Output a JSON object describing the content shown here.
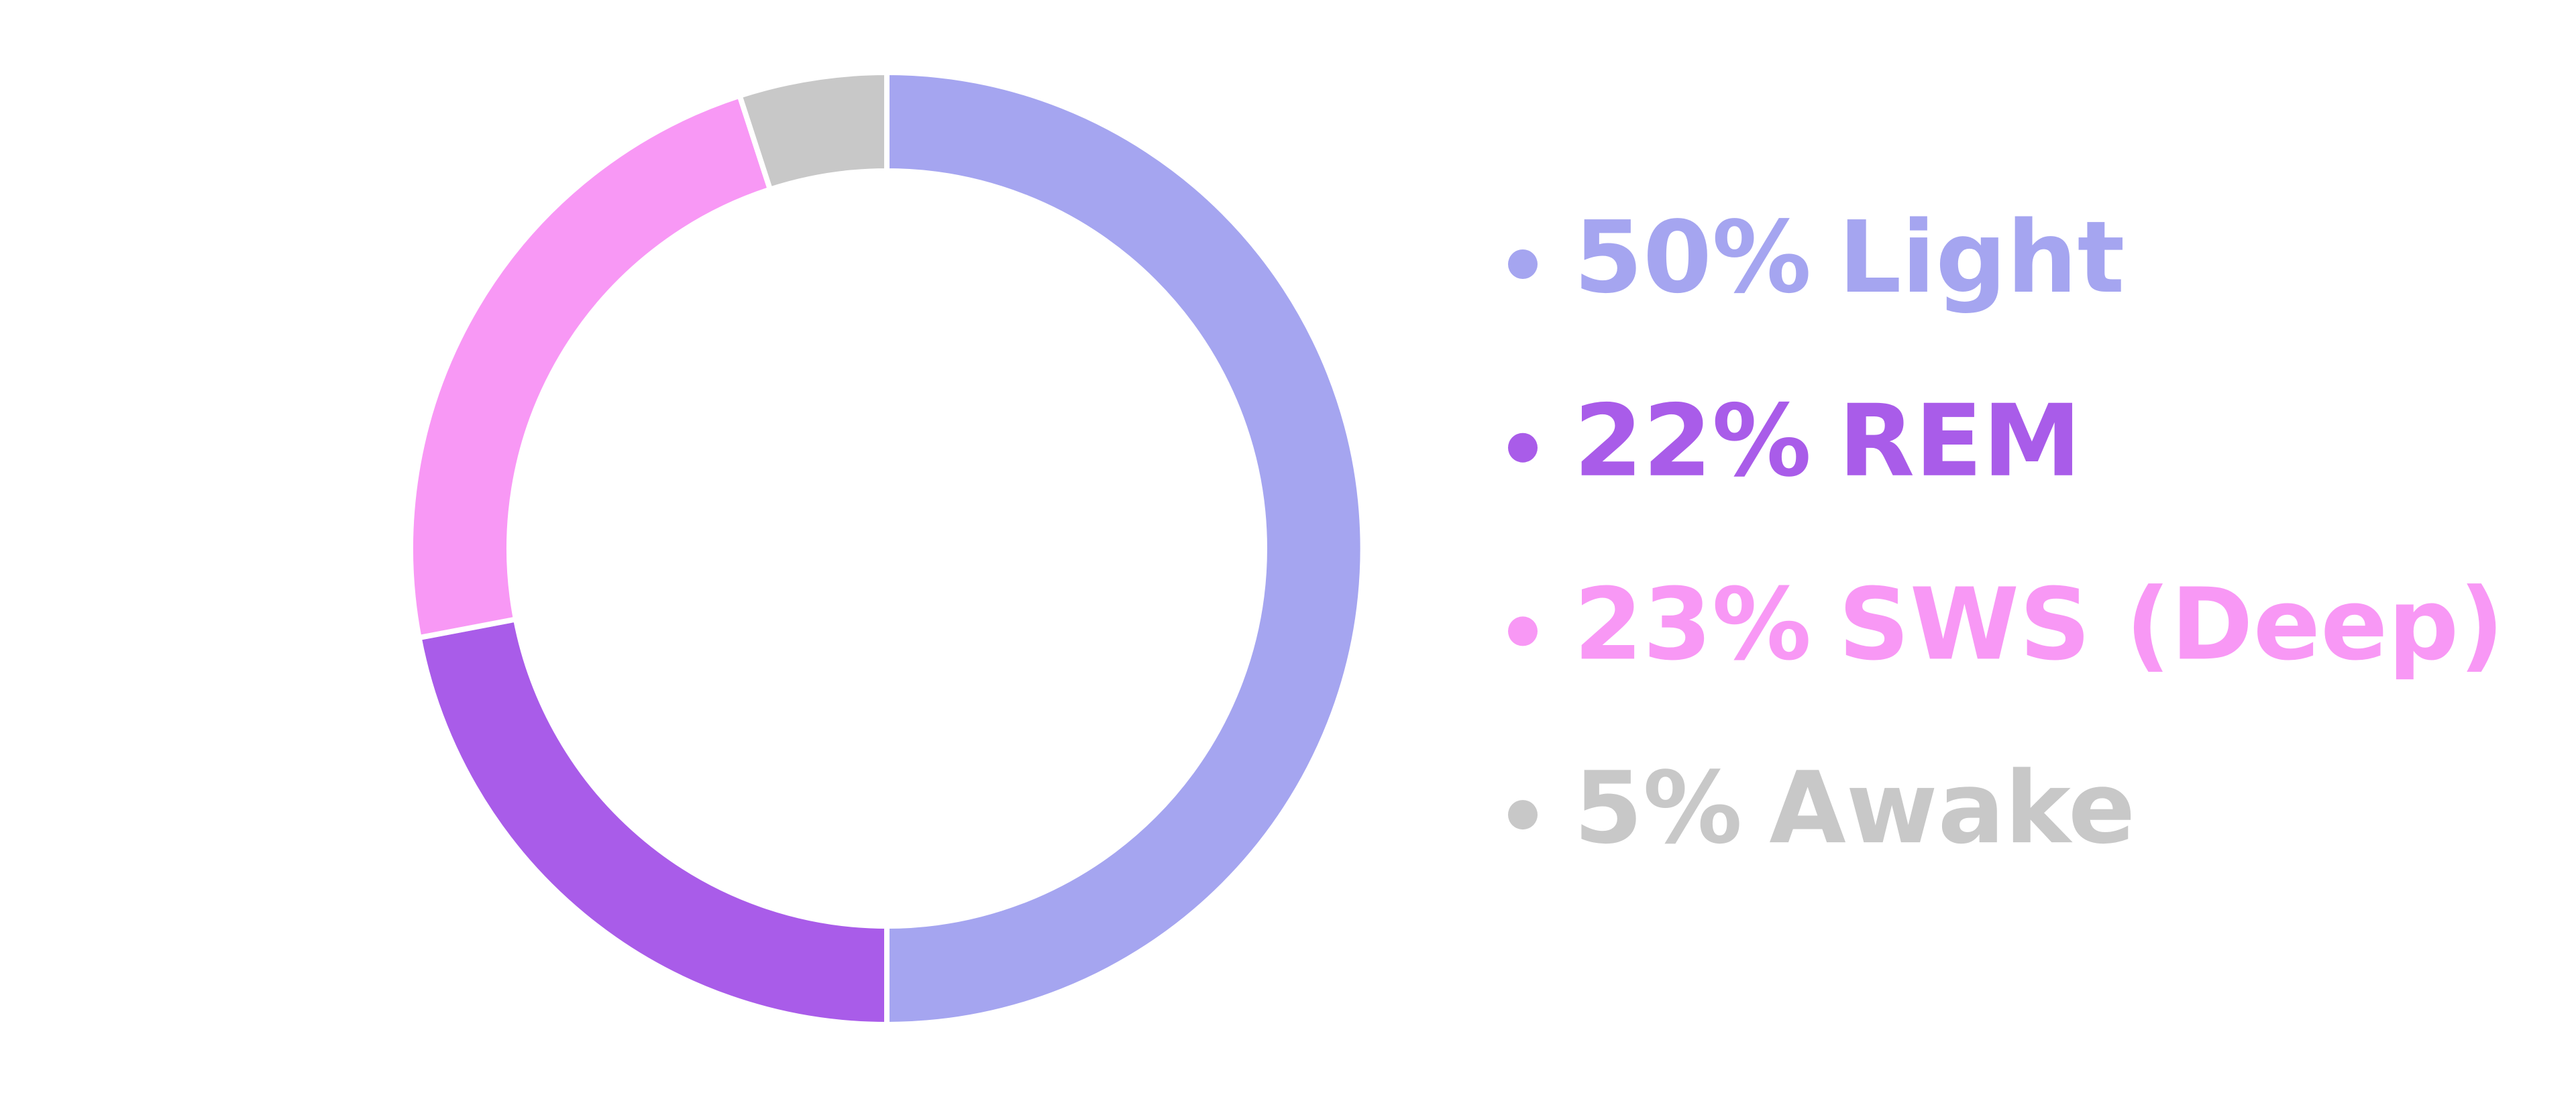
{
  "chart_data": {
    "type": "donut",
    "categories": [
      "Light",
      "REM",
      "SWS (Deep)",
      "Awake"
    ],
    "values": [
      50,
      22,
      23,
      5
    ],
    "value_labels": [
      "50%",
      "22%",
      "23%",
      "5%"
    ],
    "colors": [
      "#a5a5f0",
      "#a95ce9",
      "#f898f5",
      "#c8c8c8"
    ],
    "legend": "right"
  }
}
